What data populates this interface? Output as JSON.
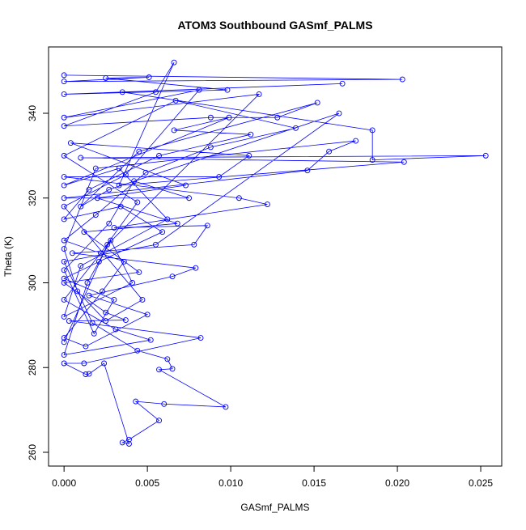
{
  "chart_data": {
    "type": "line",
    "title": "ATOM3 Southbound GASmf_PALMS",
    "xlabel": "GASmf_PALMS",
    "ylabel": "Theta (K)",
    "series": [
      {
        "color": "#0000ff",
        "x": [
          0,
          0.0203,
          0,
          0.0051,
          0.0025,
          0.0098,
          0,
          0.0167,
          0.0035,
          0.0185,
          0.0185,
          0.0253,
          0.001,
          0.0204,
          0.0033,
          0.0066,
          0.0055,
          0,
          0.0088,
          0.0128,
          0.0152,
          0.0045,
          0.001,
          0.0027,
          0.0165,
          0.0055,
          0,
          0.0017,
          0.0044,
          0.0062,
          0.0065,
          0.0057,
          0.0097,
          0.006,
          0.0043,
          0.0057,
          0.0039,
          0.0035,
          0.0039,
          0.0024,
          0.0015,
          0.0013,
          0,
          0.0012,
          0.0082,
          0.0003,
          0.0037,
          0.0025,
          0,
          0.0045,
          0.0012,
          0.0068,
          0.002,
          0.0073,
          0.0004,
          0.0111,
          0.0093,
          0,
          0.0105,
          0.0122,
          0.003,
          0.0086,
          0.0078,
          0.0005,
          0.0079,
          0.0065,
          0.0015,
          0.005,
          0.0013,
          0,
          0.0023,
          0.0036,
          0,
          0.0019,
          0.0049,
          0.0088,
          0.0139,
          0.0067,
          0,
          0.0044,
          0.0022,
          0,
          0.0031,
          0.0052,
          0,
          0.0014,
          0.0028,
          0.0041,
          0,
          0.001,
          0.0062,
          0.0033,
          0,
          0.0099,
          0.0066,
          0.0112,
          0.0057,
          0.0015,
          0,
          0.0034,
          0.0059,
          0.0021,
          0,
          0.003,
          0.0018,
          0,
          0.0027,
          0.0042,
          0.0075,
          0,
          0.0146,
          0.0159,
          0.0175,
          0.0019,
          0,
          0.0008,
          0.0025,
          0.0047,
          0,
          0.0037,
          0.0081,
          0,
          0.0117,
          0.0026,
          0
        ],
        "values": [
          349,
          348,
          347.5,
          348.5,
          348.3,
          345.5,
          344.5,
          347,
          345,
          336,
          329,
          330,
          329.5,
          328.5,
          323,
          352,
          345,
          337,
          339,
          339,
          342.5,
          331,
          318,
          322,
          340,
          309,
          305,
          290.5,
          284,
          282,
          279.7,
          279.5,
          270.7,
          271.4,
          272,
          267.5,
          263,
          262.3,
          262,
          281,
          278.5,
          278.4,
          281,
          281,
          287,
          291,
          291.2,
          293,
          300,
          302.5,
          312,
          314,
          320,
          323,
          333,
          330,
          325,
          325,
          320,
          318.5,
          313,
          313.5,
          309,
          307,
          303.5,
          301.5,
          297,
          292.5,
          285,
          287,
          298,
          305,
          310,
          316,
          326,
          332,
          336.5,
          343,
          330,
          319,
          307,
          296,
          289,
          286.5,
          283,
          300,
          310,
          300,
          292,
          304,
          315,
          327,
          323,
          339,
          336,
          335,
          330,
          322,
          315,
          318,
          312,
          305,
          301,
          296,
          288,
          303,
          314,
          324,
          320,
          320,
          326.5,
          331,
          333.5,
          327,
          308,
          298,
          291,
          296,
          318,
          325.5,
          345.5,
          339,
          344.5,
          309,
          286
        ]
      }
    ],
    "xlim": [
      -0.00093,
      0.02626
    ],
    "xticks": [
      {
        "value": 0,
        "label": "0.000"
      },
      {
        "value": 0.005,
        "label": "0.005"
      },
      {
        "value": 0.01,
        "label": "0.010"
      },
      {
        "value": 0.015,
        "label": "0.015"
      },
      {
        "value": 0.02,
        "label": "0.020"
      },
      {
        "value": 0.025,
        "label": "0.025"
      }
    ],
    "ylim": [
      256.75,
      355.66
    ],
    "yticks": [
      260,
      280,
      300,
      320,
      340
    ]
  }
}
